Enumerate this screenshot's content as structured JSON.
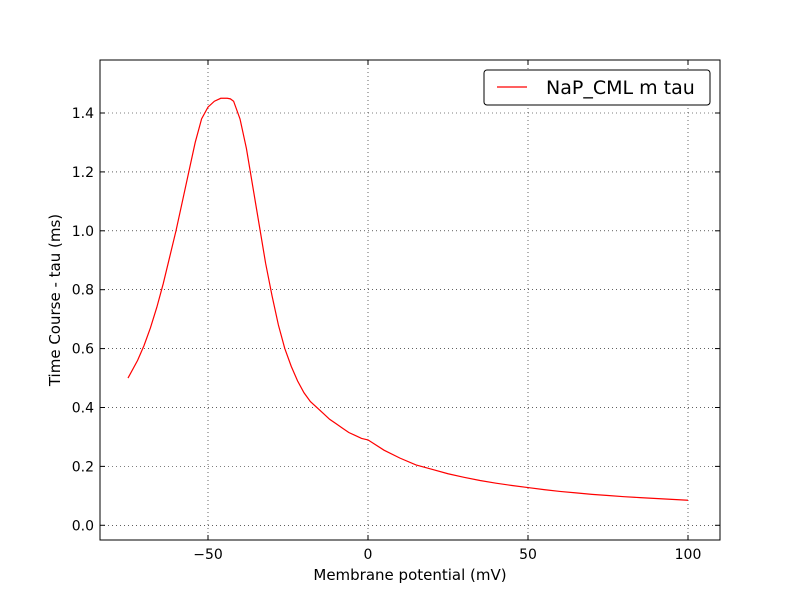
{
  "chart_data": {
    "type": "line",
    "title": "",
    "xlabel": "Membrane potential (mV)",
    "ylabel": "Time Course - tau (ms)",
    "xlim": [
      -83.75,
      110
    ],
    "ylim": [
      -0.05,
      1.58
    ],
    "xticks": [
      -50,
      0,
      50,
      100
    ],
    "xtick_labels": [
      "−50",
      "0",
      "50",
      "100"
    ],
    "yticks": [
      0.0,
      0.2,
      0.4,
      0.6,
      0.8,
      1.0,
      1.2,
      1.4
    ],
    "ytick_labels": [
      "0.0",
      "0.2",
      "0.4",
      "0.6",
      "0.8",
      "1.0",
      "1.2",
      "1.4"
    ],
    "grid": true,
    "grid_style": "dotted",
    "legend_position": "top-right",
    "series": [
      {
        "name": "NaP_CML m tau",
        "color": "#ff0000",
        "x": [
          -75,
          -72,
          -70,
          -68,
          -66,
          -64,
          -62,
          -60,
          -58,
          -56,
          -54,
          -52,
          -50,
          -48,
          -46,
          -44,
          -43,
          -42,
          -40,
          -38,
          -36,
          -34,
          -32,
          -30,
          -28,
          -26,
          -24,
          -22,
          -20,
          -18,
          -16,
          -14,
          -12,
          -10,
          -8,
          -6,
          -4,
          -2,
          0,
          5,
          10,
          15,
          20,
          25,
          30,
          35,
          40,
          45,
          50,
          55,
          60,
          65,
          70,
          75,
          80,
          85,
          90,
          95,
          100
        ],
        "y": [
          0.5,
          0.56,
          0.61,
          0.67,
          0.74,
          0.82,
          0.91,
          1.0,
          1.1,
          1.2,
          1.3,
          1.38,
          1.42,
          1.44,
          1.45,
          1.45,
          1.448,
          1.44,
          1.38,
          1.28,
          1.15,
          1.02,
          0.89,
          0.78,
          0.68,
          0.6,
          0.54,
          0.49,
          0.45,
          0.42,
          0.4,
          0.38,
          0.36,
          0.345,
          0.33,
          0.315,
          0.305,
          0.295,
          0.29,
          0.255,
          0.228,
          0.205,
          0.19,
          0.175,
          0.163,
          0.152,
          0.143,
          0.135,
          0.128,
          0.121,
          0.115,
          0.11,
          0.105,
          0.101,
          0.097,
          0.094,
          0.091,
          0.088,
          0.085
        ]
      }
    ]
  }
}
